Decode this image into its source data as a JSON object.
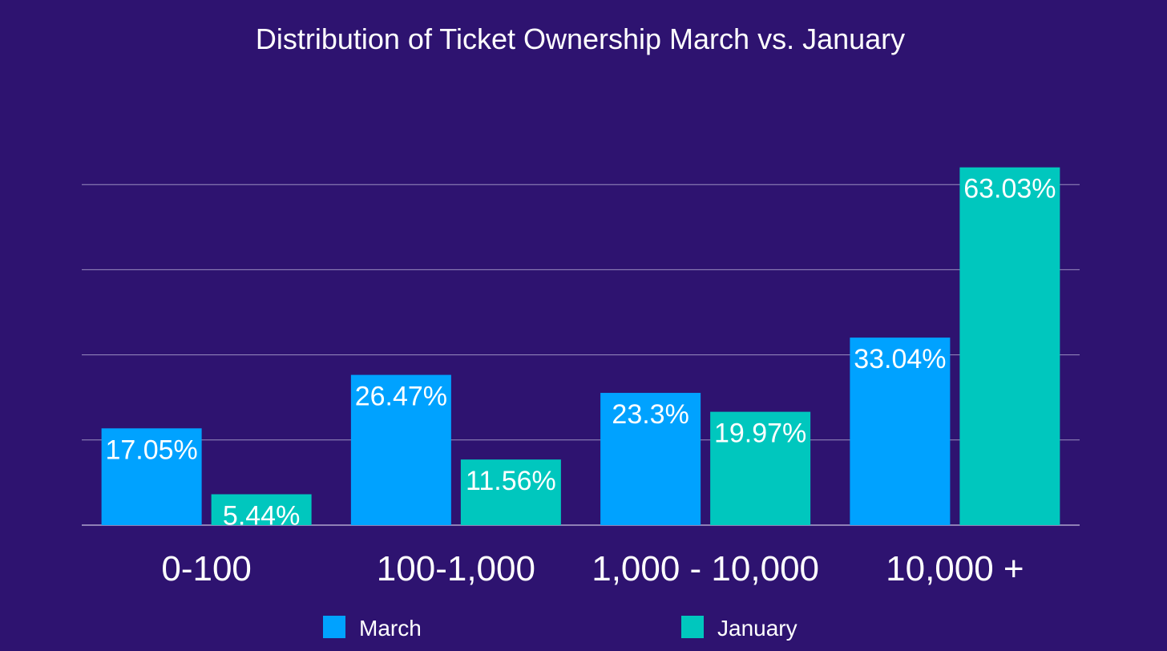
{
  "chart_data": {
    "type": "bar",
    "title": "Distribution of Ticket Ownership March vs. January",
    "categories": [
      "0-100",
      "100-1,000",
      "1,000 - 10,000",
      "10,000 +"
    ],
    "series": [
      {
        "name": "March",
        "values": [
          17.05,
          26.47,
          23.3,
          33.04
        ],
        "labels": [
          "17.05%",
          "26.47%",
          "23.3%",
          "33.04%"
        ],
        "color": "#00a2ff"
      },
      {
        "name": "January",
        "values": [
          5.44,
          11.56,
          19.97,
          63.03
        ],
        "labels": [
          "5.44%",
          "11.56%",
          "19.97%",
          "63.03%"
        ],
        "color": "#00c7be"
      }
    ],
    "ylim": [
      0,
      75
    ],
    "y_gridlines": [
      0,
      15,
      30,
      45,
      60
    ],
    "grid": true,
    "legend_position": "bottom",
    "background": "#2e1370",
    "text_color": "#ffffff"
  }
}
